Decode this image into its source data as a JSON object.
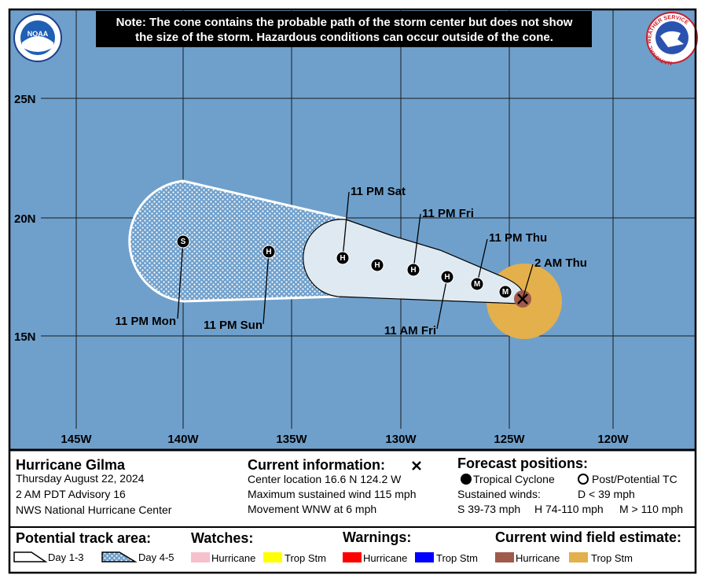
{
  "note": {
    "lines": [
      "Note: The cone contains the probable path of the storm center but does not show",
      "the size of the storm. Hazardous conditions can occur outside of the cone."
    ]
  },
  "logos": {
    "noaa": "NOAA",
    "nws": "NATIONAL WEATHER SERVICE"
  },
  "map": {
    "lat_labels": [
      "25N",
      "20N",
      "15N"
    ],
    "lon_labels": [
      "145W",
      "140W",
      "135W",
      "130W",
      "125W",
      "120W"
    ],
    "point_labels": [
      "M",
      "M",
      "H",
      "H",
      "H",
      "H",
      "H",
      "S"
    ],
    "time_labels": [
      "2 AM Thu",
      "11 PM Thu",
      "11 PM Fri",
      "11 PM Sat",
      "11 AM Fri",
      "11 PM Sun",
      "11 PM Mon"
    ]
  },
  "info": {
    "storm": {
      "name": "Hurricane Gilma",
      "date": "Thursday August 22, 2024",
      "advisory": "2 AM PDT Advisory 16",
      "office": "NWS National Hurricane Center"
    },
    "current": {
      "title": "Current information:",
      "lines": [
        "Center location 16.6 N 124.2 W",
        "Maximum sustained wind 115 mph",
        "Movement WNW at 6 mph"
      ]
    },
    "forecast": {
      "title": "Forecast positions:",
      "tropical": "Tropical Cyclone",
      "post": "Post/Potential TC",
      "winds": "Sustained winds:",
      "d": "D < 39 mph",
      "s": "S 39-73 mph",
      "h": "H 74-110 mph",
      "m": "M > 110 mph"
    }
  },
  "legend": {
    "track": {
      "title": "Potential track area:",
      "day13": "Day 1-3",
      "day45": "Day 4-5"
    },
    "watches": {
      "title": "Watches:",
      "hurricane": "Hurricane",
      "trop": "Trop Stm"
    },
    "warnings": {
      "title": "Warnings:",
      "hurricane": "Hurricane",
      "trop": "Trop Stm"
    },
    "wind": {
      "title": "Current wind field estimate:",
      "hurricane": "Hurricane",
      "trop": "Trop Stm"
    }
  }
}
